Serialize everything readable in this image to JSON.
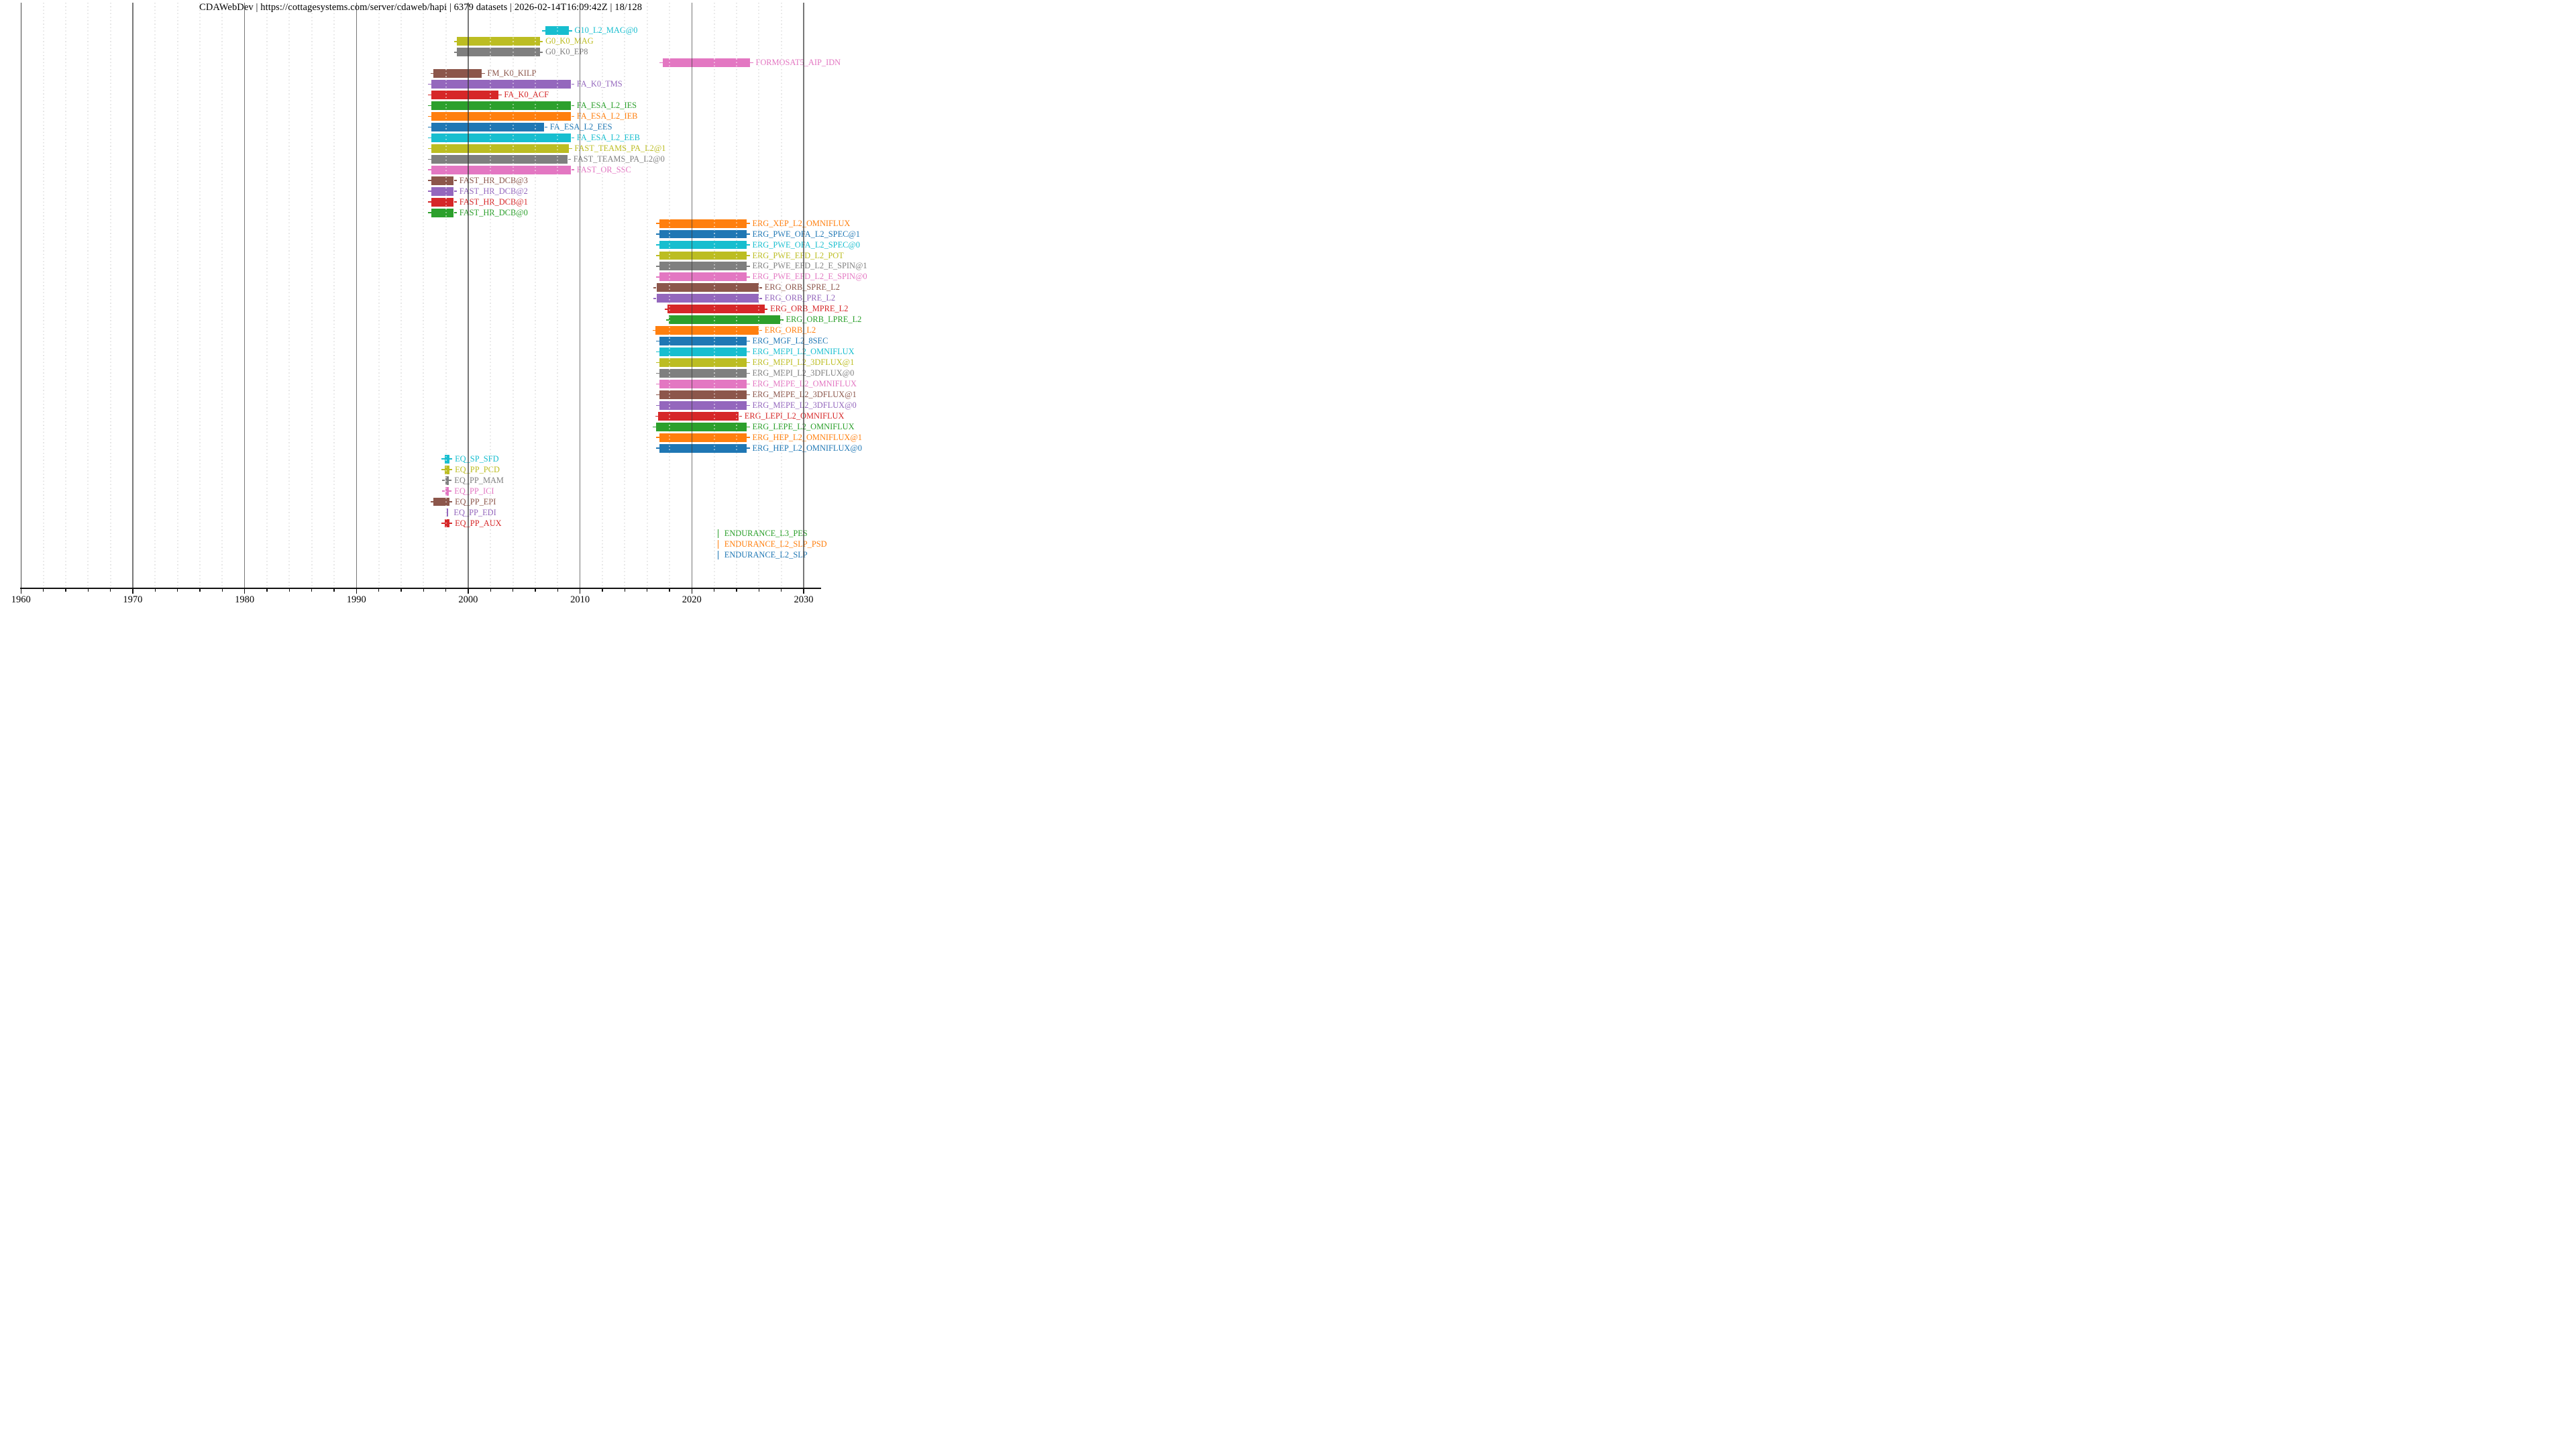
{
  "title": "CDAWebDev | https://cottagesystems.com/server/cdaweb/hapi | 6379 datasets | 2026-02-14T16:09:42Z | 18/128",
  "chart_data": {
    "type": "timeline",
    "title": "CDAWebDev | https://cottagesystems.com/server/cdaweb/hapi | 6379 datasets | 2026-02-14T16:09:42Z | 18/128",
    "x_range": [
      1960,
      2031.5
    ],
    "x_ticks": [
      1960,
      1970,
      1980,
      1990,
      2000,
      2010,
      2020,
      2030
    ],
    "x_tick_labels": [
      "1960",
      "1970",
      "1980",
      "1990",
      "2000",
      "2010",
      "2020",
      "2030"
    ],
    "minor_tick_step_years": 2,
    "grid": "decade solid lines + 2-year dotted lines",
    "legend": "none (labels drawn at right end of each bar, colored as bar)",
    "row_order": "top-to-bottom",
    "datasets": [
      {
        "name": "G10_L2_MAG@0",
        "color": "#17becf",
        "start": 2006.9,
        "end": 2009.0
      },
      {
        "name": "G0_K0_MAG",
        "color": "#bcbd22",
        "start": 1999.0,
        "end": 2006.4
      },
      {
        "name": "G0_K0_EP8",
        "color": "#7f7f7f",
        "start": 1999.0,
        "end": 2006.4
      },
      {
        "name": "FORMOSAT5_AIP_IDN",
        "color": "#e377c2",
        "start": 2017.4,
        "end": 2025.2
      },
      {
        "name": "FM_K0_KILP",
        "color": "#8c564b",
        "start": 1996.9,
        "end": 2001.2
      },
      {
        "name": "FA_K0_TMS",
        "color": "#9467bd",
        "start": 1996.7,
        "end": 2009.2
      },
      {
        "name": "FA_K0_ACF",
        "color": "#d62728",
        "start": 1996.7,
        "end": 2002.7
      },
      {
        "name": "FA_ESA_L2_IES",
        "color": "#2ca02c",
        "start": 1996.7,
        "end": 2009.2
      },
      {
        "name": "FA_ESA_L2_IEB",
        "color": "#ff7f0e",
        "start": 1996.7,
        "end": 2009.2
      },
      {
        "name": "FA_ESA_L2_EES",
        "color": "#1f77b4",
        "start": 1996.7,
        "end": 2006.8
      },
      {
        "name": "FA_ESA_L2_EEB",
        "color": "#17becf",
        "start": 1996.7,
        "end": 2009.2
      },
      {
        "name": "FAST_TEAMS_PA_L2@1",
        "color": "#bcbd22",
        "start": 1996.7,
        "end": 2009.0
      },
      {
        "name": "FAST_TEAMS_PA_L2@0",
        "color": "#7f7f7f",
        "start": 1996.7,
        "end": 2008.9
      },
      {
        "name": "FAST_OR_SSC",
        "color": "#e377c2",
        "start": 1996.7,
        "end": 2009.2
      },
      {
        "name": "FAST_HR_DCB@3",
        "color": "#8c564b",
        "start": 1996.7,
        "end": 1998.7
      },
      {
        "name": "FAST_HR_DCB@2",
        "color": "#9467bd",
        "start": 1996.7,
        "end": 1998.7
      },
      {
        "name": "FAST_HR_DCB@1",
        "color": "#d62728",
        "start": 1996.7,
        "end": 1998.7
      },
      {
        "name": "FAST_HR_DCB@0",
        "color": "#2ca02c",
        "start": 1996.7,
        "end": 1998.7
      },
      {
        "name": "ERG_XEP_L2_OMNIFLUX",
        "color": "#ff7f0e",
        "start": 2017.1,
        "end": 2024.9
      },
      {
        "name": "ERG_PWE_OFA_L2_SPEC@1",
        "color": "#1f77b4",
        "start": 2017.1,
        "end": 2024.9
      },
      {
        "name": "ERG_PWE_OFA_L2_SPEC@0",
        "color": "#17becf",
        "start": 2017.1,
        "end": 2024.9
      },
      {
        "name": "ERG_PWE_EFD_L2_POT",
        "color": "#bcbd22",
        "start": 2017.1,
        "end": 2024.9
      },
      {
        "name": "ERG_PWE_EFD_L2_E_SPIN@1",
        "color": "#7f7f7f",
        "start": 2017.1,
        "end": 2024.9
      },
      {
        "name": "ERG_PWE_EFD_L2_E_SPIN@0",
        "color": "#e377c2",
        "start": 2017.1,
        "end": 2024.9
      },
      {
        "name": "ERG_ORB_SPRE_L2",
        "color": "#8c564b",
        "start": 2016.85,
        "end": 2026.0
      },
      {
        "name": "ERG_ORB_PRE_L2",
        "color": "#9467bd",
        "start": 2016.85,
        "end": 2026.0
      },
      {
        "name": "ERG_ORB_MPRE_L2",
        "color": "#d62728",
        "start": 2017.85,
        "end": 2026.5
      },
      {
        "name": "ERG_ORB_LPRE_L2",
        "color": "#2ca02c",
        "start": 2017.95,
        "end": 2027.9
      },
      {
        "name": "ERG_ORB_L2",
        "color": "#ff7f0e",
        "start": 2016.75,
        "end": 2026.0
      },
      {
        "name": "ERG_MGF_L2_8SEC",
        "color": "#1f77b4",
        "start": 2017.1,
        "end": 2024.9
      },
      {
        "name": "ERG_MEPI_L2_OMNIFLUX",
        "color": "#17becf",
        "start": 2017.1,
        "end": 2024.9
      },
      {
        "name": "ERG_MEPI_L2_3DFLUX@1",
        "color": "#bcbd22",
        "start": 2017.1,
        "end": 2024.9
      },
      {
        "name": "ERG_MEPI_L2_3DFLUX@0",
        "color": "#7f7f7f",
        "start": 2017.1,
        "end": 2024.9
      },
      {
        "name": "ERG_MEPE_L2_OMNIFLUX",
        "color": "#e377c2",
        "start": 2017.1,
        "end": 2024.9
      },
      {
        "name": "ERG_MEPE_L2_3DFLUX@1",
        "color": "#8c564b",
        "start": 2017.1,
        "end": 2024.9
      },
      {
        "name": "ERG_MEPE_L2_3DFLUX@0",
        "color": "#9467bd",
        "start": 2017.1,
        "end": 2024.9
      },
      {
        "name": "ERG_LEPI_L2_OMNIFLUX",
        "color": "#d62728",
        "start": 2017.0,
        "end": 2024.2
      },
      {
        "name": "ERG_LEPE_L2_OMNIFLUX",
        "color": "#2ca02c",
        "start": 2016.8,
        "end": 2024.9
      },
      {
        "name": "ERG_HEP_L2_OMNIFLUX@1",
        "color": "#ff7f0e",
        "start": 2017.1,
        "end": 2024.9
      },
      {
        "name": "ERG_HEP_L2_OMNIFLUX@0",
        "color": "#1f77b4",
        "start": 2017.1,
        "end": 2024.9
      },
      {
        "name": "EQ_SP_SFD",
        "color": "#17becf",
        "start": 1997.9,
        "end": 1998.3
      },
      {
        "name": "EQ_PP_PCD",
        "color": "#bcbd22",
        "start": 1997.9,
        "end": 1998.3
      },
      {
        "name": "EQ_PP_MAM",
        "color": "#7f7f7f",
        "start": 1997.95,
        "end": 1998.25
      },
      {
        "name": "EQ_PP_ICI",
        "color": "#e377c2",
        "start": 1997.95,
        "end": 1998.25
      },
      {
        "name": "EQ_PP_EPI",
        "color": "#8c564b",
        "start": 1996.9,
        "end": 1998.3
      },
      {
        "name": "EQ_PP_EDI",
        "color": "#9467bd",
        "start": 1998.1,
        "end": 1998.2
      },
      {
        "name": "EQ_PP_AUX",
        "color": "#d62728",
        "start": 1997.9,
        "end": 1998.3
      },
      {
        "name": "ENDURANCE_L3_PES",
        "color": "#2ca02c",
        "start": 2022.35,
        "end": 2022.4
      },
      {
        "name": "ENDURANCE_L2_SLP_PSD",
        "color": "#ff7f0e",
        "start": 2022.35,
        "end": 2022.4
      },
      {
        "name": "ENDURANCE_L2_SLP",
        "color": "#1f77b4",
        "start": 2022.35,
        "end": 2022.4
      }
    ]
  }
}
